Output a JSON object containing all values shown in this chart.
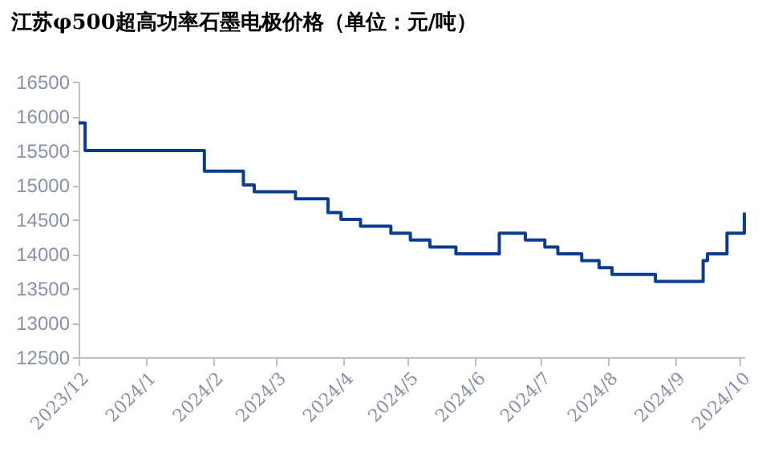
{
  "chart_data": {
    "type": "step",
    "title": "江苏φ500超高功率石墨电极价格（单位：元/吨）",
    "x": [
      "2023-12-01",
      "2023-12-04",
      "2024-01-28",
      "2024-02-15",
      "2024-02-20",
      "2024-03-10",
      "2024-03-25",
      "2024-03-31",
      "2024-04-09",
      "2024-04-23",
      "2024-05-02",
      "2024-05-11",
      "2024-05-23",
      "2024-06-12",
      "2024-06-24",
      "2024-07-03",
      "2024-07-09",
      "2024-07-20",
      "2024-07-28",
      "2024-08-03",
      "2024-08-23",
      "2024-09-14",
      "2024-09-16",
      "2024-09-25",
      "2024-10-03"
    ],
    "series": [
      {
        "color": "#0b3d8c",
        "values": [
          15900,
          15500,
          15200,
          15000,
          14900,
          14800,
          14600,
          14500,
          14400,
          14300,
          14200,
          14100,
          14000,
          14300,
          14200,
          14100,
          14000,
          13900,
          13800,
          13700,
          13600,
          13900,
          14000,
          14300,
          14600
        ]
      }
    ],
    "xlim": [
      "2023-12-01",
      "2024-10-03"
    ],
    "xticks": [
      {
        "value": "2023-12",
        "label": "2023/12"
      },
      {
        "value": "2024-01",
        "label": "2024/1"
      },
      {
        "value": "2024-02",
        "label": "2024/2"
      },
      {
        "value": "2024-03",
        "label": "2024/3"
      },
      {
        "value": "2024-04",
        "label": "2024/4"
      },
      {
        "value": "2024-05",
        "label": "2024/5"
      },
      {
        "value": "2024-06",
        "label": "2024/6"
      },
      {
        "value": "2024-07",
        "label": "2024/7"
      },
      {
        "value": "2024-08",
        "label": "2024/8"
      },
      {
        "value": "2024-09",
        "label": "2024/9"
      },
      {
        "value": "2024-10",
        "label": "2024/10"
      }
    ],
    "ylim": [
      12500,
      16500
    ],
    "yticks": [
      12500,
      13000,
      13500,
      14000,
      14500,
      15000,
      15500,
      16000,
      16500
    ],
    "grid": false
  }
}
